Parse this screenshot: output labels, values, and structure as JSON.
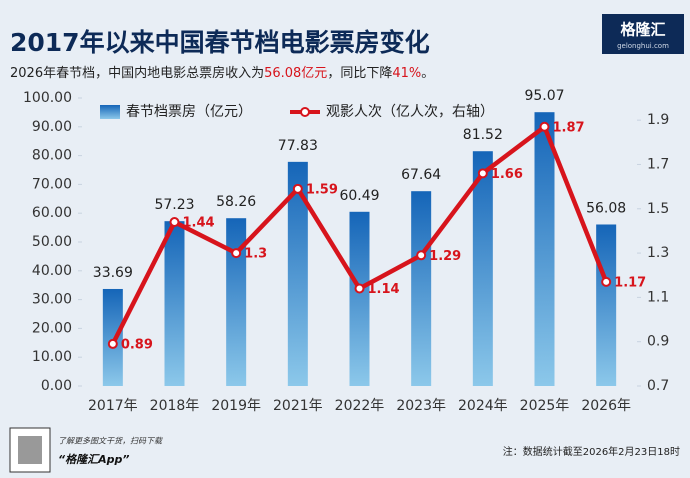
{
  "chart_data": {
    "type": "bar-line",
    "title": "2017年以来中国春节档电影票房变化",
    "subtitle": [
      "2026年春节档，中国内地电影总票房收入为",
      "56.08亿元",
      "，同比下降",
      "41%",
      "。"
    ],
    "logo": "格隆汇",
    "logo_url": "gelonghui.com",
    "categories": [
      "2017年",
      "2018年",
      "2019年",
      "2021年",
      "2022年",
      "2023年",
      "2024年",
      "2025年",
      "2026年"
    ],
    "series": [
      {
        "name": "春节档票房（亿元）",
        "color": "#1f78c8",
        "type": "bar",
        "values": [
          33.69,
          57.23,
          58.26,
          77.83,
          60.49,
          67.64,
          81.52,
          95.07,
          56.08
        ]
      },
      {
        "name": "观影人次（亿人次，右轴）",
        "color": "#d7141c",
        "type": "line",
        "axis": "y2",
        "values": [
          0.89,
          1.44,
          1.3,
          1.59,
          1.14,
          1.29,
          1.66,
          1.87,
          1.17
        ]
      }
    ],
    "ylim": [
      0,
      100
    ],
    "yticks": [
      {
        "value": 0,
        "label": "0.00"
      },
      {
        "value": 10,
        "label": "10.00"
      },
      {
        "value": 20,
        "label": "20.00"
      },
      {
        "value": 30,
        "label": "30.00"
      },
      {
        "value": 40,
        "label": "40.00"
      },
      {
        "value": 50,
        "label": "50.00"
      },
      {
        "value": 60,
        "label": "60.00"
      },
      {
        "value": 70,
        "label": "70.00"
      },
      {
        "value": 80,
        "label": "80.00"
      },
      {
        "value": 90,
        "label": "90.00"
      },
      {
        "value": 100,
        "label": "100.00"
      }
    ],
    "y2lim": [
      0.7,
      2.0
    ],
    "y2ticks": [
      0.7,
      0.9,
      1.1,
      1.3,
      1.5,
      1.7,
      1.9
    ],
    "legend": "top-left",
    "footer_left": [
      "了解更多图文干货，扫码下载",
      "“格隆汇App”"
    ],
    "note": "注：数据统计截至2026年2月23日18时"
  }
}
